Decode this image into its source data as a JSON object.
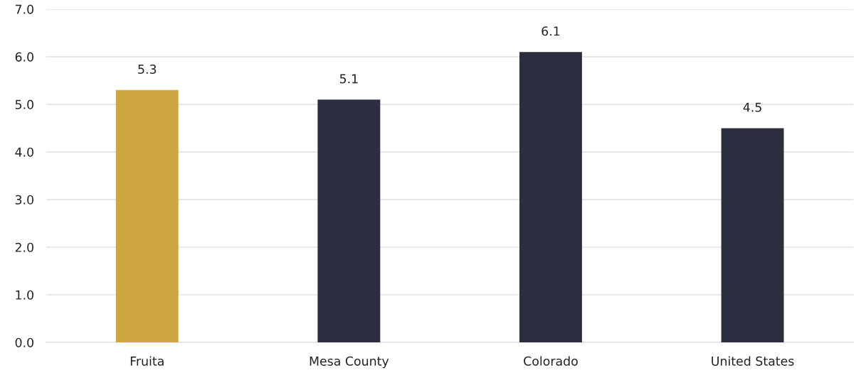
{
  "chart_data": {
    "type": "bar",
    "categories": [
      "Fruita",
      "Mesa County",
      "Colorado",
      "United States"
    ],
    "values": [
      5.3,
      5.1,
      6.1,
      4.5
    ],
    "colors": [
      "#cda541",
      "#2b2e3e",
      "#2b2e3e",
      "#2b2e3e"
    ],
    "data_labels": true,
    "ylim": [
      0,
      7
    ],
    "yticks": [
      {
        "value": 0,
        "label": "0.0"
      },
      {
        "value": 1,
        "label": "1.0"
      },
      {
        "value": 2,
        "label": "2.0"
      },
      {
        "value": 3,
        "label": "3.0"
      },
      {
        "value": 4,
        "label": "4.0"
      },
      {
        "value": 5,
        "label": "5.0"
      },
      {
        "value": 6,
        "label": "6.0"
      },
      {
        "value": 7,
        "label": "7.0"
      }
    ],
    "grid": "y"
  }
}
